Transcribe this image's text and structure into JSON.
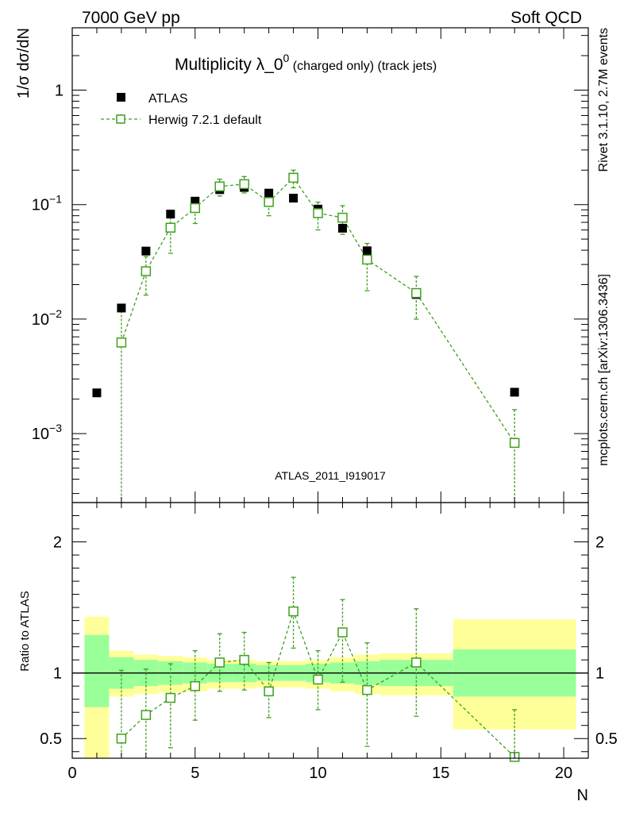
{
  "header": {
    "left": "7000 GeV pp",
    "right": "Soft QCD"
  },
  "side_text": {
    "rivet": "Rivet 3.1.10,  2.7M events",
    "mcplots": "mcplots.cern.ch [arXiv:1306.3436]"
  },
  "colors": {
    "data": "#000000",
    "mc": "#3f9f1f",
    "band_outer": "#ffff99",
    "band_inner": "#99ff99",
    "watermark": "#999999"
  },
  "chart_data": [
    {
      "type": "scatter",
      "scale": "log",
      "title_main": "Multiplicity λ_0",
      "title_sup": "0",
      "title_suffix": " (charged only) (track jets)",
      "ylabel": "1/σ dσ/dN",
      "watermark": "ATLAS_2011_I919017",
      "xlim": [
        0,
        21
      ],
      "ylim": [
        0.00025,
        3.5
      ],
      "ytick_labels": [
        {
          "value": 1,
          "mant": "1",
          "exp": ""
        },
        {
          "value": 0.1,
          "mant": "10",
          "exp": "−1"
        },
        {
          "value": 0.01,
          "mant": "10",
          "exp": "−2"
        },
        {
          "value": 0.001,
          "mant": "10",
          "exp": "−3"
        }
      ],
      "legend": [
        {
          "name": "ATLAS",
          "marker": "filled-square"
        },
        {
          "name": "Herwig 7.2.1 default",
          "marker": "open-square-dashed"
        }
      ],
      "series": [
        {
          "name": "ATLAS",
          "x": [
            1,
            2,
            3,
            4,
            5,
            6,
            7,
            8,
            9,
            10,
            11,
            12,
            14,
            18
          ],
          "y": [
            0.00227,
            0.0125,
            0.0393,
            0.0826,
            0.1072,
            0.1351,
            0.1412,
            0.126,
            0.1138,
            0.0913,
            0.0622,
            0.0395,
            0.0164,
            0.0023
          ]
        },
        {
          "name": "Herwig 7.2.1 default",
          "x": [
            2,
            3,
            4,
            5,
            6,
            7,
            8,
            9,
            10,
            11,
            12,
            14,
            18
          ],
          "y": [
            0.00625,
            0.0262,
            0.0629,
            0.0933,
            0.1441,
            0.1509,
            0.1054,
            0.1716,
            0.0842,
            0.0769,
            0.0331,
            0.0169,
            0.00083
          ],
          "y_low": [
            0.0001,
            0.0162,
            0.0376,
            0.0684,
            0.1189,
            0.1265,
            0.08,
            0.1402,
            0.0601,
            0.055,
            0.0177,
            0.01,
            0.0001
          ],
          "y_high": [
            0.0128,
            0.0352,
            0.0838,
            0.115,
            0.1668,
            0.1758,
            0.129,
            0.2,
            0.1051,
            0.0978,
            0.0458,
            0.0236,
            0.00162
          ]
        }
      ]
    },
    {
      "type": "scatter",
      "scale": "linear",
      "ylabel": "Ratio to ATLAS",
      "xlabel": "N",
      "xlim": [
        0,
        21
      ],
      "ylim": [
        0.35,
        2.3
      ],
      "yticks": [
        0.5,
        1,
        2
      ],
      "ytick_labels": [
        "0.5",
        "1",
        "2"
      ],
      "xticks": [
        0,
        5,
        10,
        15,
        20
      ],
      "xtick_labels": [
        "0",
        "5",
        "10",
        "15",
        "20"
      ],
      "reference": 1,
      "bands": [
        {
          "x0": 0.5,
          "x1": 1.5,
          "inner": [
            0.74,
            1.29
          ],
          "outer": [
            0.3,
            1.43
          ]
        },
        {
          "x0": 1.5,
          "x1": 2.5,
          "inner": [
            0.88,
            1.12
          ],
          "outer": [
            0.82,
            1.17
          ]
        },
        {
          "x0": 2.5,
          "x1": 3.5,
          "inner": [
            0.9,
            1.1
          ],
          "outer": [
            0.84,
            1.14
          ]
        },
        {
          "x0": 3.5,
          "x1": 4.5,
          "inner": [
            0.91,
            1.09
          ],
          "outer": [
            0.85,
            1.13
          ]
        },
        {
          "x0": 4.5,
          "x1": 5.5,
          "inner": [
            0.92,
            1.08
          ],
          "outer": [
            0.86,
            1.12
          ]
        },
        {
          "x0": 5.5,
          "x1": 6.5,
          "inner": [
            0.93,
            1.07
          ],
          "outer": [
            0.88,
            1.1
          ]
        },
        {
          "x0": 6.5,
          "x1": 7.5,
          "inner": [
            0.93,
            1.07
          ],
          "outer": [
            0.88,
            1.1
          ]
        },
        {
          "x0": 7.5,
          "x1": 8.5,
          "inner": [
            0.94,
            1.06
          ],
          "outer": [
            0.89,
            1.09
          ]
        },
        {
          "x0": 8.5,
          "x1": 9.5,
          "inner": [
            0.94,
            1.06
          ],
          "outer": [
            0.89,
            1.09
          ]
        },
        {
          "x0": 9.5,
          "x1": 10.5,
          "inner": [
            0.93,
            1.07
          ],
          "outer": [
            0.88,
            1.1
          ]
        },
        {
          "x0": 10.5,
          "x1": 11.5,
          "inner": [
            0.92,
            1.08
          ],
          "outer": [
            0.86,
            1.12
          ]
        },
        {
          "x0": 11.5,
          "x1": 12.5,
          "inner": [
            0.91,
            1.09
          ],
          "outer": [
            0.84,
            1.14
          ]
        },
        {
          "x0": 12.5,
          "x1": 15.5,
          "inner": [
            0.9,
            1.1
          ],
          "outer": [
            0.83,
            1.15
          ]
        },
        {
          "x0": 15.5,
          "x1": 20.5,
          "inner": [
            0.82,
            1.18
          ],
          "outer": [
            0.57,
            1.41
          ]
        }
      ],
      "series": [
        {
          "name": "Herwig 7.2.1 default",
          "x": [
            2,
            3,
            4,
            5,
            6,
            7,
            8,
            9,
            10,
            11,
            12,
            14,
            18
          ],
          "y": [
            0.5,
            0.68,
            0.81,
            0.9,
            1.08,
            1.1,
            0.86,
            1.47,
            0.95,
            1.31,
            0.87,
            1.08,
            0.36
          ],
          "y_low": [
            0.3,
            0.3,
            0.43,
            0.64,
            0.86,
            0.87,
            0.66,
            1.19,
            0.72,
            0.93,
            0.44,
            0.67,
            0.3
          ],
          "y_high": [
            1.02,
            1.03,
            1.07,
            1.17,
            1.3,
            1.31,
            1.08,
            1.73,
            1.17,
            1.56,
            1.23,
            1.49,
            0.72
          ]
        }
      ]
    }
  ]
}
